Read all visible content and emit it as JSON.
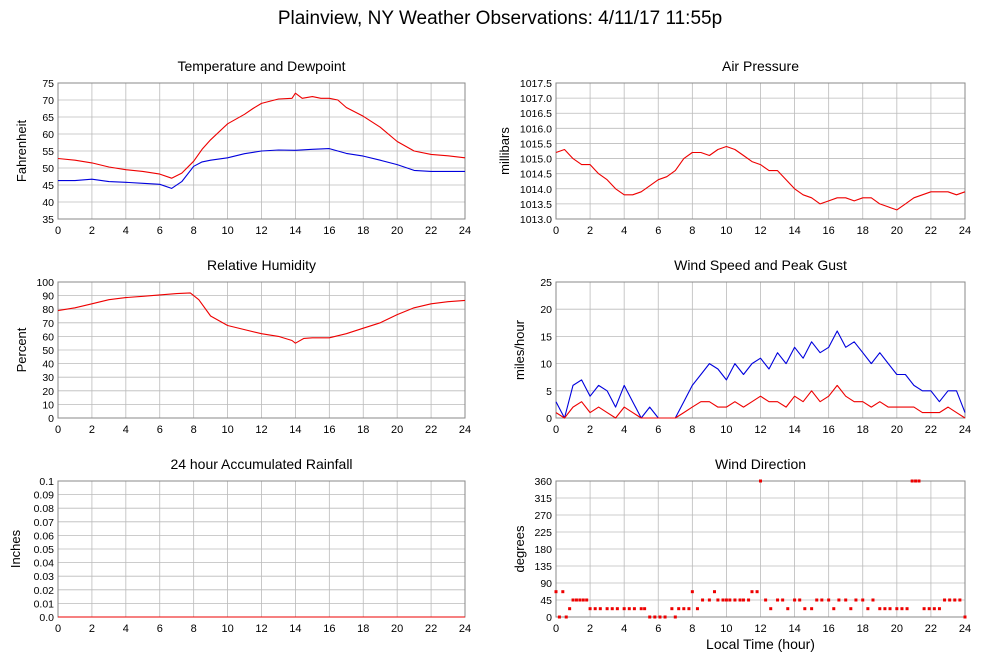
{
  "title": "Plainview, NY Weather Observations: 4/11/17 11:55p",
  "xlabel": "Local Time (hour)",
  "colors": {
    "primary": "#ee0000",
    "secondary": "#0000dd",
    "grid": "#bbbbbb",
    "frame": "#888888"
  },
  "chart_data": [
    {
      "id": "temp",
      "type": "line",
      "title": "Temperature and Dewpoint",
      "ylabel": "Fahrenheit",
      "xlim": [
        0,
        24
      ],
      "ylim": [
        35,
        75
      ],
      "xticks": [
        "0",
        "2",
        "4",
        "6",
        "8",
        "10",
        "12",
        "14",
        "16",
        "18",
        "20",
        "22",
        "24"
      ],
      "yticks": [
        "35",
        "40",
        "45",
        "50",
        "55",
        "60",
        "65",
        "70",
        "75"
      ],
      "series": [
        {
          "color": "#ee0000",
          "x": [
            0,
            1,
            2,
            3,
            4,
            5,
            6,
            6.7,
            7.3,
            8,
            8.5,
            9,
            10,
            11,
            11.5,
            12,
            13,
            13.8,
            14,
            14.4,
            15,
            15.5,
            16,
            16.5,
            17,
            18,
            19,
            20,
            21,
            22,
            23,
            24
          ],
          "y": [
            52.8,
            52.3,
            51.5,
            50.3,
            49.5,
            49,
            48.2,
            47,
            48.5,
            52,
            55.5,
            58.3,
            63,
            65.8,
            67.5,
            69,
            70.3,
            70.5,
            72,
            70.5,
            71,
            70.5,
            70.5,
            70,
            67.8,
            65.2,
            62,
            57.8,
            55,
            54,
            53.6,
            53
          ]
        },
        {
          "color": "#0000dd",
          "x": [
            0,
            1,
            2,
            3,
            4,
            5,
            6,
            6.7,
            7.3,
            8,
            8.5,
            9,
            10,
            11,
            12,
            13,
            14,
            15,
            16,
            17,
            18,
            19,
            20,
            21,
            22,
            23,
            24
          ],
          "y": [
            46.3,
            46.3,
            46.7,
            46,
            45.8,
            45.5,
            45.2,
            44,
            46,
            50.5,
            51.8,
            52.3,
            53,
            54.2,
            55,
            55.3,
            55.2,
            55.5,
            55.7,
            54.3,
            53.5,
            52.3,
            51,
            49.3,
            49,
            49,
            49
          ]
        }
      ]
    },
    {
      "id": "pressure",
      "type": "line",
      "title": "Air Pressure",
      "ylabel": "millibars",
      "xlim": [
        0,
        24
      ],
      "ylim": [
        1013.0,
        1017.5
      ],
      "xticks": [
        "0",
        "2",
        "4",
        "6",
        "8",
        "10",
        "12",
        "14",
        "16",
        "18",
        "20",
        "22",
        "24"
      ],
      "yticks": [
        "1013.0",
        "1013.5",
        "1014.0",
        "1014.5",
        "1015.0",
        "1015.5",
        "1016.0",
        "1016.5",
        "1017.0",
        "1017.5"
      ],
      "series": [
        {
          "color": "#ee0000",
          "x": [
            0,
            0.5,
            1,
            1.5,
            2,
            2.5,
            3,
            3.5,
            4,
            4.5,
            5,
            5.5,
            6,
            6.5,
            7,
            7.5,
            8,
            8.5,
            9,
            9.5,
            10,
            10.5,
            11,
            11.5,
            12,
            12.5,
            13,
            13.5,
            14,
            14.5,
            15,
            15.5,
            16,
            16.5,
            17,
            17.5,
            18,
            18.5,
            19,
            19.5,
            20,
            20.5,
            21,
            21.5,
            22,
            22.5,
            23,
            23.5,
            24
          ],
          "y": [
            1015.2,
            1015.3,
            1015.0,
            1014.8,
            1014.8,
            1014.5,
            1014.3,
            1014.0,
            1013.8,
            1013.8,
            1013.9,
            1014.1,
            1014.3,
            1014.4,
            1014.6,
            1015.0,
            1015.2,
            1015.2,
            1015.1,
            1015.3,
            1015.4,
            1015.3,
            1015.1,
            1014.9,
            1014.8,
            1014.6,
            1014.6,
            1014.3,
            1014.0,
            1013.8,
            1013.7,
            1013.5,
            1013.6,
            1013.7,
            1013.7,
            1013.6,
            1013.7,
            1013.7,
            1013.5,
            1013.4,
            1013.3,
            1013.5,
            1013.7,
            1013.8,
            1013.9,
            1013.9,
            1013.9,
            1013.8,
            1013.9
          ]
        }
      ]
    },
    {
      "id": "humidity",
      "type": "line",
      "title": "Relative Humidity",
      "ylabel": "Percent",
      "xlim": [
        0,
        24
      ],
      "ylim": [
        0,
        100
      ],
      "xticks": [
        "0",
        "2",
        "4",
        "6",
        "8",
        "10",
        "12",
        "14",
        "16",
        "18",
        "20",
        "22",
        "24"
      ],
      "yticks": [
        "0",
        "10",
        "20",
        "30",
        "40",
        "50",
        "60",
        "70",
        "80",
        "90",
        "100"
      ],
      "series": [
        {
          "color": "#ee0000",
          "x": [
            0,
            1,
            2,
            3,
            4,
            5,
            6,
            7,
            7.8,
            8.3,
            9,
            10,
            11,
            12,
            13,
            13.8,
            14,
            14.5,
            15,
            16,
            17,
            18,
            19,
            20,
            21,
            22,
            23,
            24
          ],
          "y": [
            79,
            81,
            84,
            87,
            88.5,
            89.5,
            90.5,
            91.5,
            92,
            87,
            75,
            68,
            65,
            62,
            60,
            57,
            55,
            58.5,
            59,
            59,
            62,
            66,
            70,
            76,
            81,
            84,
            85.5,
            86.5
          ]
        }
      ]
    },
    {
      "id": "wind",
      "type": "line",
      "title": "Wind Speed and Peak Gust",
      "ylabel": "miles/hour",
      "xlim": [
        0,
        24
      ],
      "ylim": [
        0,
        25
      ],
      "xticks": [
        "0",
        "2",
        "4",
        "6",
        "8",
        "10",
        "12",
        "14",
        "16",
        "18",
        "20",
        "22",
        "24"
      ],
      "yticks": [
        "0",
        "5",
        "10",
        "15",
        "20",
        "25"
      ],
      "series": [
        {
          "color": "#0000dd",
          "x": [
            0,
            0.5,
            1,
            1.5,
            2,
            2.5,
            3,
            3.5,
            4,
            4.5,
            5,
            5.5,
            6,
            6.5,
            7,
            7.5,
            8,
            8.5,
            9,
            9.5,
            10,
            10.5,
            11,
            11.5,
            12,
            12.5,
            13,
            13.5,
            14,
            14.5,
            15,
            15.5,
            16,
            16.5,
            17,
            17.5,
            18,
            18.5,
            19,
            19.5,
            20,
            20.5,
            21,
            21.5,
            22,
            22.5,
            23,
            23.5,
            24
          ],
          "y": [
            3,
            0,
            6,
            7,
            4,
            6,
            5,
            2,
            6,
            3,
            0,
            2,
            0,
            0,
            0,
            3,
            6,
            8,
            10,
            9,
            7,
            10,
            8,
            10,
            11,
            9,
            12,
            10,
            13,
            11,
            14,
            12,
            13,
            16,
            13,
            14,
            12,
            10,
            12,
            10,
            8,
            8,
            6,
            5,
            5,
            3,
            5,
            5,
            1
          ]
        },
        {
          "color": "#ee0000",
          "x": [
            0,
            0.5,
            1,
            1.5,
            2,
            2.5,
            3,
            3.5,
            4,
            4.5,
            5,
            5.5,
            6,
            6.5,
            7,
            7.5,
            8,
            8.5,
            9,
            9.5,
            10,
            10.5,
            11,
            11.5,
            12,
            12.5,
            13,
            13.5,
            14,
            14.5,
            15,
            15.5,
            16,
            16.5,
            17,
            17.5,
            18,
            18.5,
            19,
            19.5,
            20,
            20.5,
            21,
            21.5,
            22,
            22.5,
            23,
            23.5,
            24
          ],
          "y": [
            1,
            0,
            2,
            3,
            1,
            2,
            1,
            0,
            2,
            1,
            0,
            0,
            0,
            0,
            0,
            1,
            2,
            3,
            3,
            2,
            2,
            3,
            2,
            3,
            4,
            3,
            3,
            2,
            4,
            3,
            5,
            3,
            4,
            6,
            4,
            3,
            3,
            2,
            3,
            2,
            2,
            2,
            2,
            1,
            1,
            1,
            2,
            1,
            0
          ]
        }
      ]
    },
    {
      "id": "rain",
      "type": "line",
      "title": "24 hour Accumulated Rainfall",
      "ylabel": "Inches",
      "xlim": [
        0,
        24
      ],
      "ylim": [
        0,
        0.1
      ],
      "xticks": [
        "0",
        "2",
        "4",
        "6",
        "8",
        "10",
        "12",
        "14",
        "16",
        "18",
        "20",
        "22",
        "24"
      ],
      "yticks": [
        "0.0",
        "0.01",
        "0.02",
        "0.03",
        "0.04",
        "0.05",
        "0.06",
        "0.07",
        "0.08",
        "0.09",
        "0.1"
      ],
      "series": [
        {
          "color": "#ee0000",
          "x": [
            0,
            24
          ],
          "y": [
            0,
            0
          ]
        }
      ]
    },
    {
      "id": "direction",
      "type": "scatter",
      "title": "Wind Direction",
      "ylabel": "degrees",
      "xlim": [
        0,
        24
      ],
      "ylim": [
        0,
        360
      ],
      "xticks": [
        "0",
        "2",
        "4",
        "6",
        "8",
        "10",
        "12",
        "14",
        "16",
        "18",
        "20",
        "22",
        "24"
      ],
      "yticks": [
        "0",
        "45",
        "90",
        "135",
        "180",
        "225",
        "270",
        "315",
        "360"
      ],
      "series": [
        {
          "color": "#ee0000",
          "x": [
            0,
            0.2,
            0.4,
            0.6,
            0.8,
            1,
            1.2,
            1.4,
            1.6,
            1.8,
            2,
            2.3,
            2.6,
            3,
            3.3,
            3.6,
            4,
            4.3,
            4.6,
            5,
            5.2,
            5.5,
            5.8,
            6.1,
            6.4,
            6.8,
            7,
            7.2,
            7.5,
            7.8,
            8,
            8.3,
            8.6,
            9,
            9.3,
            9.5,
            9.8,
            10,
            10.2,
            10.5,
            10.8,
            11,
            11.3,
            11.5,
            11.8,
            12,
            12.3,
            12.6,
            13,
            13.3,
            13.6,
            14,
            14.3,
            14.6,
            15,
            15.3,
            15.6,
            16,
            16.3,
            16.6,
            17,
            17.3,
            17.6,
            18,
            18.3,
            18.6,
            19,
            19.3,
            19.6,
            20,
            20.3,
            20.6,
            20.9,
            21.1,
            21.3,
            21.6,
            21.9,
            22.2,
            22.5,
            22.8,
            23.1,
            23.4,
            23.7,
            24
          ],
          "y": [
            67,
            0,
            67,
            0,
            22,
            45,
            45,
            45,
            45,
            45,
            22,
            22,
            22,
            22,
            22,
            22,
            22,
            22,
            22,
            22,
            22,
            0,
            0,
            0,
            0,
            22,
            0,
            22,
            22,
            22,
            67,
            22,
            45,
            45,
            67,
            45,
            45,
            45,
            45,
            45,
            45,
            45,
            45,
            67,
            67,
            360,
            45,
            22,
            45,
            45,
            22,
            45,
            45,
            22,
            22,
            45,
            45,
            45,
            22,
            45,
            45,
            22,
            45,
            45,
            22,
            45,
            22,
            22,
            22,
            22,
            22,
            22,
            360,
            360,
            360,
            22,
            22,
            22,
            22,
            45,
            45,
            45,
            45,
            0
          ]
        }
      ]
    }
  ]
}
